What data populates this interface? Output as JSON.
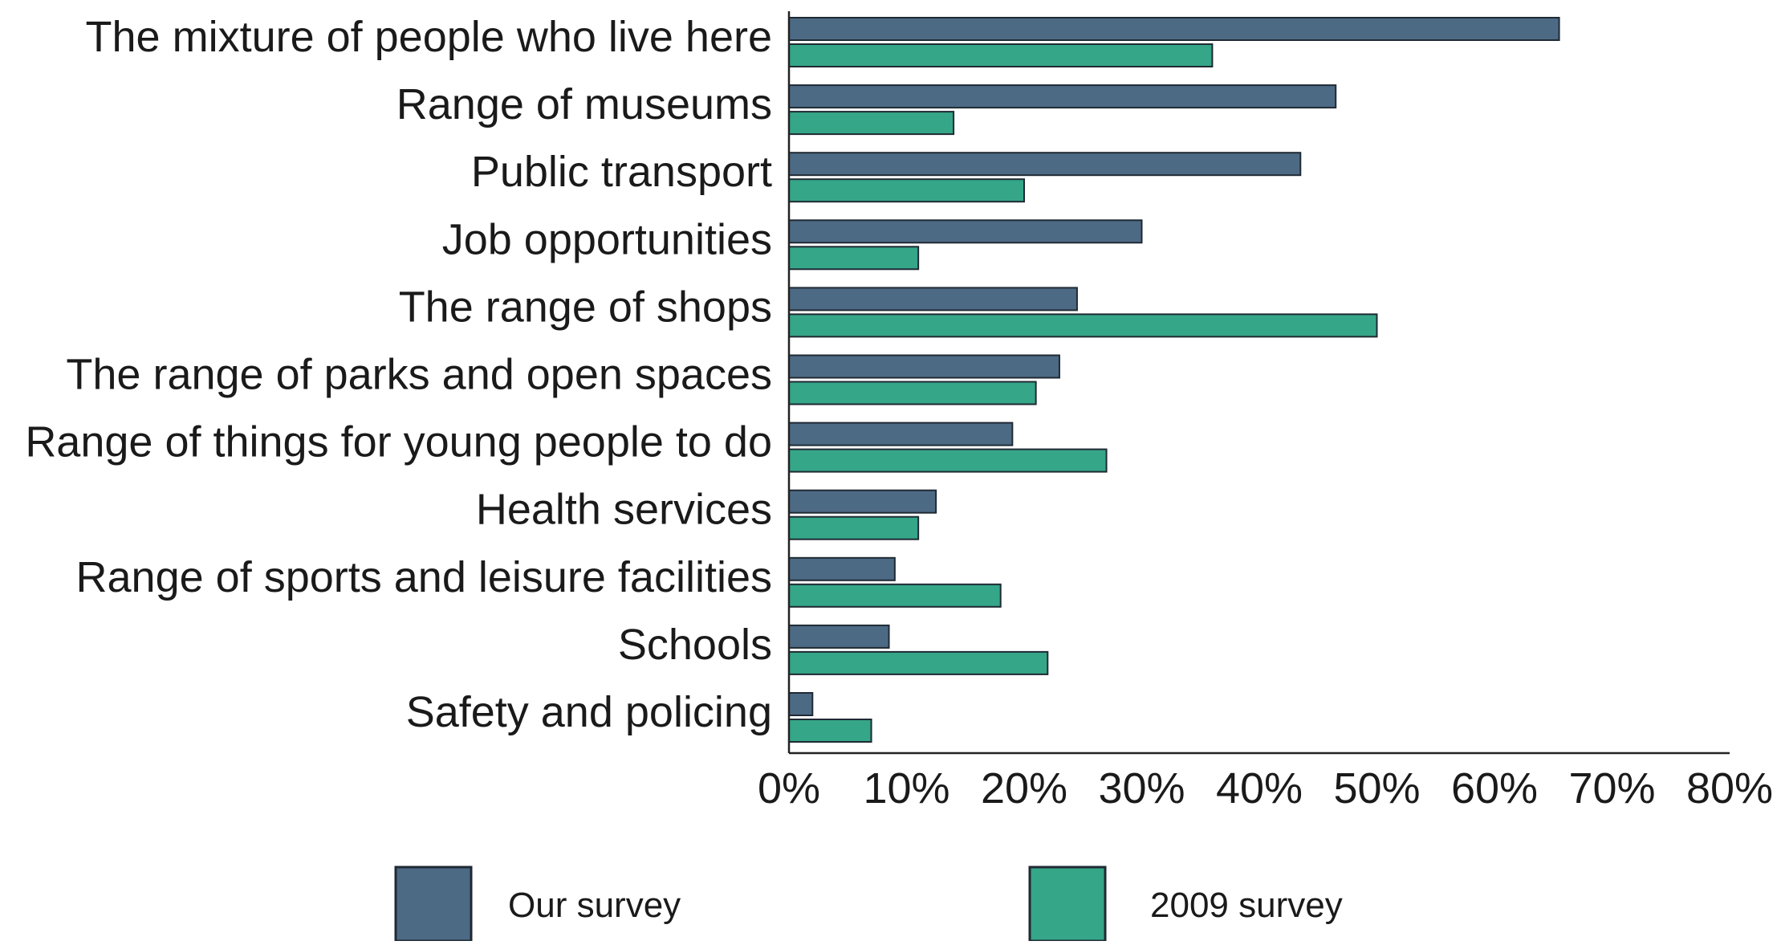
{
  "chart_data": {
    "type": "bar",
    "orientation": "horizontal",
    "categories": [
      "The mixture of people who live here",
      "Range of museums",
      "Public transport",
      "Job opportunities",
      "The range of shops",
      "The range of parks and open spaces",
      "Range of things for young people to do",
      "Health services",
      "Range of sports and leisure facilities",
      "Schools",
      "Safety and policing"
    ],
    "series": [
      {
        "name": "Our survey",
        "color": "#4d6a85",
        "values": [
          65.5,
          46.5,
          43.5,
          30,
          24.5,
          23,
          19,
          12.5,
          9,
          8.5,
          2
        ]
      },
      {
        "name": "2009 survey",
        "color": "#35a688",
        "values": [
          36,
          14,
          20,
          11,
          50,
          21,
          27,
          11,
          18,
          22,
          7
        ]
      }
    ],
    "xlim": [
      0,
      80
    ],
    "x_ticks": [
      "0%",
      "10%",
      "20%",
      "30%",
      "40%",
      "50%",
      "60%",
      "70%",
      "80%"
    ],
    "xlabel": "",
    "ylabel": "",
    "title": "",
    "grid": false,
    "legend_position": "bottom"
  }
}
